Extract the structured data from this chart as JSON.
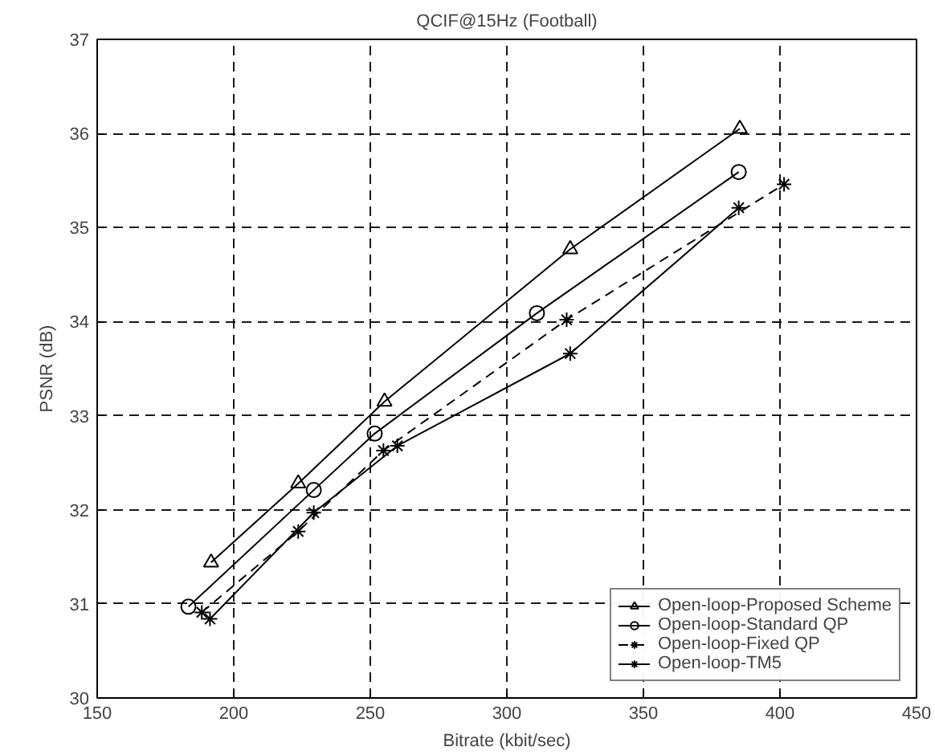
{
  "chart_data": {
    "type": "line",
    "title": "QCIF@15Hz (Football)",
    "xlabel": "Bitrate (kbit/sec)",
    "ylabel": "PSNR (dB)",
    "xlim": [
      150,
      450
    ],
    "xticks": [
      150,
      200,
      250,
      300,
      350,
      400,
      450
    ],
    "ylim": [
      30,
      37
    ],
    "yticks": [
      30,
      31,
      32,
      33,
      34,
      35,
      36,
      37
    ],
    "grid": true,
    "legend": "bottom right",
    "series": [
      {
        "name": "Open-loop-Proposed Scheme",
        "color": "#000000",
        "marker": "triangle",
        "line_style": "solid",
        "x": [
          191.7,
          223.6,
          255.2,
          323.2,
          385.3
        ],
        "values": [
          31.44,
          32.28,
          33.15,
          34.77,
          36.05
        ]
      },
      {
        "name": "Open-loop-Standard QP",
        "color": "#000000",
        "marker": "circle",
        "line_style": "solid",
        "x": [
          183.4,
          229.3,
          251.6,
          311.0,
          384.9
        ],
        "values": [
          30.97,
          32.21,
          32.81,
          34.09,
          35.59
        ]
      },
      {
        "name": "Open-loop-Fixed QP",
        "color": "#000000",
        "marker": "cross",
        "line_style": "dashed",
        "x": [
          188.3,
          223.6,
          254.8,
          321.9,
          401.5
        ],
        "values": [
          30.91,
          31.77,
          32.63,
          34.02,
          35.46
        ]
      },
      {
        "name": "Open-loop-TM5",
        "color": "#000000",
        "marker": "cross",
        "line_style": "solid",
        "x": [
          191.3,
          229.3,
          259.9,
          323.2,
          384.9
        ],
        "values": [
          30.84,
          31.97,
          32.68,
          33.66,
          35.21
        ]
      }
    ]
  }
}
